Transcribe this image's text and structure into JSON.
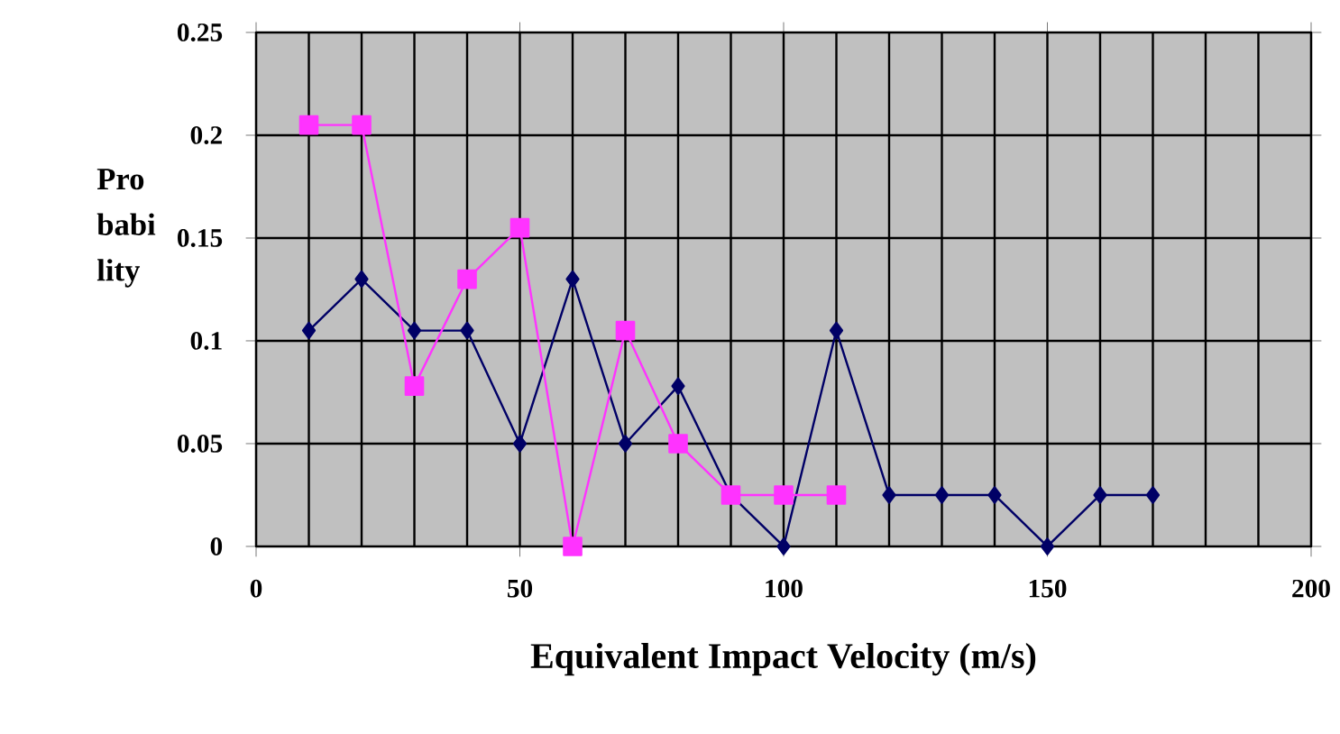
{
  "chart_data": {
    "type": "line",
    "xlabel": "Equivalent Impact Velocity (m/s)",
    "ylabel": "Pro babi lity",
    "xlim": [
      0,
      200
    ],
    "xticks": [
      0,
      50,
      100,
      150,
      200
    ],
    "ylim": [
      0,
      0.25
    ],
    "yticks": [
      0,
      0.05,
      0.1,
      0.15,
      0.2,
      0.25
    ],
    "grid": true,
    "series": [
      {
        "color": "#000066",
        "marker": "diamond",
        "x": [
          10,
          20,
          30,
          40,
          50,
          60,
          70,
          80,
          90,
          100,
          110,
          120,
          130,
          140,
          150,
          160,
          170
        ],
        "values": [
          0.105,
          0.13,
          0.105,
          0.105,
          0.05,
          0.13,
          0.05,
          0.078,
          0.025,
          0,
          0.105,
          0.025,
          0.025,
          0.025,
          0,
          0.025,
          0.025
        ]
      },
      {
        "color": "#ff33ff",
        "marker": "square",
        "x": [
          10,
          20,
          30,
          40,
          50,
          60,
          70,
          80,
          90,
          100,
          110
        ],
        "values": [
          0.205,
          0.205,
          0.078,
          0.13,
          0.155,
          0,
          0.105,
          0.05,
          0.025,
          0.025,
          0.025
        ]
      }
    ]
  }
}
